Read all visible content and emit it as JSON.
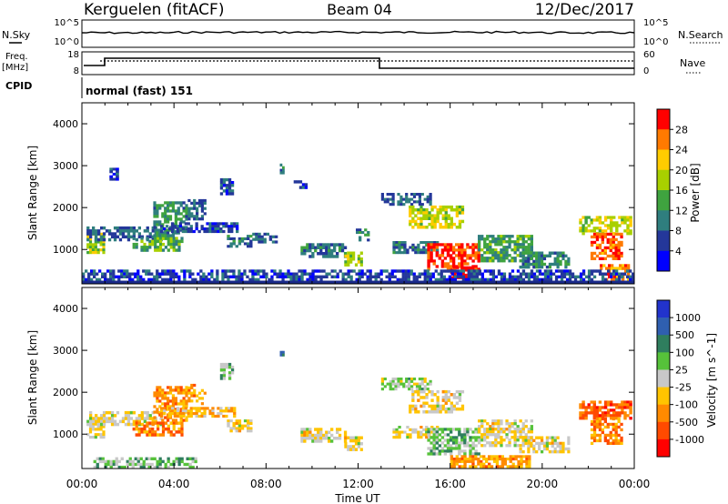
{
  "header": {
    "station": "Kerguelen (fitACF)",
    "beam": "Beam 04",
    "date": "12/Dec/2017"
  },
  "panels": {
    "noise": {
      "left_label": "N.Sky",
      "right_label": "N.Search",
      "left_ticks": [
        "10^5",
        "10^0"
      ],
      "right_ticks": [
        "10^5",
        "10^0"
      ]
    },
    "freq": {
      "label_line1": "Freq.",
      "label_line2": "[MHz]",
      "left_ticks": [
        "18",
        "8"
      ],
      "right_ticks": [
        "60",
        "0"
      ],
      "right_label": "Nave"
    },
    "cpid": {
      "label": "CPID",
      "text": "normal (fast) 151"
    }
  },
  "chart_data": [
    {
      "type": "heatmap",
      "name": "power",
      "ylabel": "Slant Range [km]",
      "yticks": [
        "4000",
        "3000",
        "2000",
        "1000"
      ],
      "ylim": [
        180,
        4500
      ],
      "colorbar": {
        "label": "Power [dB]",
        "ticks": [
          "28",
          "24",
          "20",
          "16",
          "12",
          "8",
          "4"
        ],
        "colors": [
          "#ff0000",
          "#ff7a00",
          "#ffcc00",
          "#a8d000",
          "#3fa33f",
          "#2f7e7e",
          "#24379a",
          "#0000ff"
        ]
      },
      "patches": [
        {
          "t0": 0.2,
          "t1": 1.0,
          "r0": 900,
          "r1": 1400,
          "lvl": 0.55
        },
        {
          "t0": 0.2,
          "t1": 3.5,
          "r0": 1200,
          "r1": 1550,
          "lvl": 0.25
        },
        {
          "t0": 1.2,
          "t1": 1.6,
          "r0": 2650,
          "r1": 2950,
          "lvl": 0.15
        },
        {
          "t0": 2.2,
          "t1": 4.4,
          "r0": 950,
          "r1": 1300,
          "lvl": 0.45
        },
        {
          "t0": 3.1,
          "t1": 4.6,
          "r0": 1300,
          "r1": 2150,
          "lvl": 0.35
        },
        {
          "t0": 3.4,
          "t1": 6.8,
          "r0": 1400,
          "r1": 1650,
          "lvl": 0.2
        },
        {
          "t0": 4.6,
          "t1": 5.4,
          "r0": 1700,
          "r1": 2200,
          "lvl": 0.25
        },
        {
          "t0": 6.0,
          "t1": 6.6,
          "r0": 2300,
          "r1": 2700,
          "lvl": 0.2
        },
        {
          "t0": 6.3,
          "t1": 7.4,
          "r0": 1050,
          "r1": 1350,
          "lvl": 0.3
        },
        {
          "t0": 7.4,
          "t1": 8.5,
          "r0": 1150,
          "r1": 1400,
          "lvl": 0.25
        },
        {
          "t0": 8.6,
          "t1": 8.8,
          "r0": 2800,
          "r1": 3050,
          "lvl": 0.35
        },
        {
          "t0": 9.2,
          "t1": 9.8,
          "r0": 2450,
          "r1": 2650,
          "lvl": 0.2
        },
        {
          "t0": 9.5,
          "t1": 11.5,
          "r0": 800,
          "r1": 1150,
          "lvl": 0.3
        },
        {
          "t0": 11.4,
          "t1": 12.2,
          "r0": 600,
          "r1": 950,
          "lvl": 0.55
        },
        {
          "t0": 11.9,
          "t1": 12.5,
          "r0": 1200,
          "r1": 1500,
          "lvl": 0.3
        },
        {
          "t0": 13.0,
          "t1": 15.2,
          "r0": 2050,
          "r1": 2350,
          "lvl": 0.25
        },
        {
          "t0": 14.2,
          "t1": 16.6,
          "r0": 1500,
          "r1": 2050,
          "lvl": 0.6
        },
        {
          "t0": 13.5,
          "t1": 15.5,
          "r0": 900,
          "r1": 1200,
          "lvl": 0.3
        },
        {
          "t0": 15.0,
          "t1": 17.3,
          "r0": 500,
          "r1": 1150,
          "lvl": 0.9
        },
        {
          "t0": 16.0,
          "t1": 17.0,
          "r0": 300,
          "r1": 600,
          "lvl": 0.95
        },
        {
          "t0": 17.2,
          "t1": 19.6,
          "r0": 700,
          "r1": 1350,
          "lvl": 0.4
        },
        {
          "t0": 19.0,
          "t1": 21.2,
          "r0": 550,
          "r1": 950,
          "lvl": 0.35
        },
        {
          "t0": 21.6,
          "t1": 23.9,
          "r0": 1350,
          "r1": 1800,
          "lvl": 0.6
        },
        {
          "t0": 22.1,
          "t1": 23.5,
          "r0": 750,
          "r1": 1400,
          "lvl": 0.85
        },
        {
          "t0": 22.5,
          "t1": 23.8,
          "r0": 250,
          "r1": 650,
          "lvl": 0.8
        },
        {
          "t0": 0.0,
          "t1": 24.0,
          "r0": 180,
          "r1": 520,
          "lvl": 0.2
        }
      ]
    },
    {
      "type": "heatmap",
      "name": "velocity",
      "ylabel": "Slant Range [km]",
      "yticks": [
        "4000",
        "3000",
        "2000",
        "1000"
      ],
      "ylim": [
        180,
        4500
      ],
      "colorbar": {
        "label": "Velocity [m s^-1]",
        "ticks": [
          "1000",
          "500",
          "100",
          "25",
          "-25",
          "-100",
          "-500",
          "-1000"
        ],
        "colors": [
          "#2233cc",
          "#2f5fb0",
          "#2f7e5e",
          "#56c23a",
          "#c8c8c8",
          "#ffc400",
          "#ff8a00",
          "#ff4a00",
          "#ff0000"
        ]
      },
      "patches": [
        {
          "t0": 0.2,
          "t1": 1.0,
          "r0": 900,
          "r1": 1400,
          "lvl": 0.45
        },
        {
          "t0": 0.2,
          "t1": 3.5,
          "r0": 1200,
          "r1": 1550,
          "lvl": 0.45
        },
        {
          "t0": 2.2,
          "t1": 4.4,
          "r0": 950,
          "r1": 1300,
          "lvl": 0.25
        },
        {
          "t0": 3.1,
          "t1": 4.6,
          "r0": 1300,
          "r1": 2150,
          "lvl": 0.3
        },
        {
          "t0": 3.4,
          "t1": 6.8,
          "r0": 1400,
          "r1": 1650,
          "lvl": 0.35
        },
        {
          "t0": 4.6,
          "t1": 5.4,
          "r0": 1700,
          "r1": 2200,
          "lvl": 0.3
        },
        {
          "t0": 6.0,
          "t1": 6.6,
          "r0": 2300,
          "r1": 2700,
          "lvl": 0.6
        },
        {
          "t0": 6.3,
          "t1": 7.4,
          "r0": 1050,
          "r1": 1350,
          "lvl": 0.45
        },
        {
          "t0": 8.6,
          "t1": 8.8,
          "r0": 2800,
          "r1": 3050,
          "lvl": 0.7
        },
        {
          "t0": 9.5,
          "t1": 11.5,
          "r0": 800,
          "r1": 1150,
          "lvl": 0.45
        },
        {
          "t0": 11.4,
          "t1": 12.2,
          "r0": 600,
          "r1": 950,
          "lvl": 0.45
        },
        {
          "t0": 13.0,
          "t1": 15.2,
          "r0": 2050,
          "r1": 2350,
          "lvl": 0.55
        },
        {
          "t0": 14.2,
          "t1": 16.6,
          "r0": 1500,
          "r1": 2050,
          "lvl": 0.45
        },
        {
          "t0": 13.5,
          "t1": 15.5,
          "r0": 900,
          "r1": 1200,
          "lvl": 0.45
        },
        {
          "t0": 15.0,
          "t1": 17.3,
          "r0": 500,
          "r1": 1150,
          "lvl": 0.6
        },
        {
          "t0": 16.0,
          "t1": 19.5,
          "r0": 200,
          "r1": 500,
          "lvl": 0.3
        },
        {
          "t0": 17.2,
          "t1": 19.6,
          "r0": 700,
          "r1": 1350,
          "lvl": 0.45
        },
        {
          "t0": 19.0,
          "t1": 21.2,
          "r0": 550,
          "r1": 950,
          "lvl": 0.45
        },
        {
          "t0": 21.6,
          "t1": 23.9,
          "r0": 1350,
          "r1": 1800,
          "lvl": 0.2
        },
        {
          "t0": 22.1,
          "t1": 23.5,
          "r0": 750,
          "r1": 1400,
          "lvl": 0.25
        },
        {
          "t0": 0.5,
          "t1": 5.0,
          "r0": 180,
          "r1": 450,
          "lvl": 0.6
        }
      ]
    }
  ],
  "xaxis": {
    "ticks": [
      "00:00",
      "04:00",
      "08:00",
      "12:00",
      "16:00",
      "20:00",
      "00:00"
    ],
    "label": "Time UT"
  }
}
